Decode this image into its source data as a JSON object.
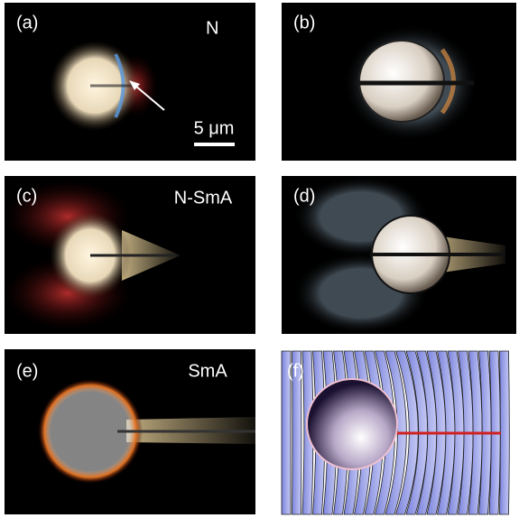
{
  "panels": [
    {
      "label": "(a)",
      "phase": "N",
      "scale_bar": "5 μm"
    },
    {
      "label": "(b)"
    },
    {
      "label": "(c)",
      "phase": "N-SmA"
    },
    {
      "label": "(d)"
    },
    {
      "label": "(e)",
      "phase": "SmA"
    },
    {
      "label": "(f)"
    }
  ]
}
